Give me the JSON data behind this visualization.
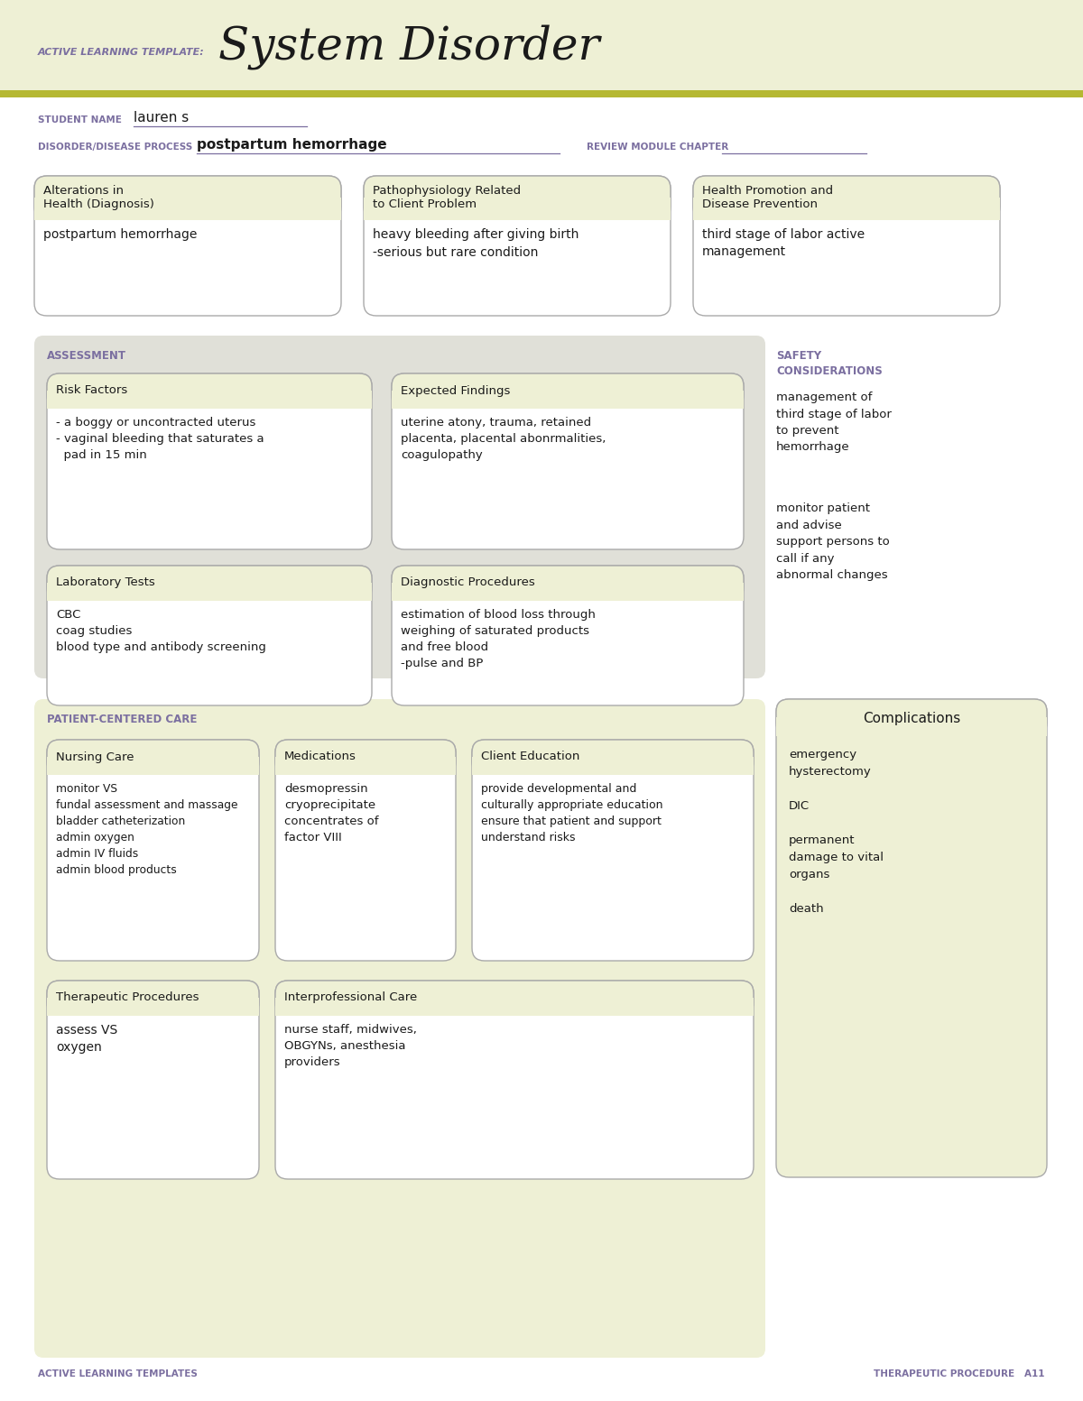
{
  "bg_color": "#eef0d5",
  "white": "#ffffff",
  "light_yellow": "#eef0d5",
  "light_gray": "#e0e0d8",
  "olive_line": "#b5b832",
  "purple": "#7b6fa0",
  "dark_text": "#1a1a1a",
  "title_prefix": "ACTIVE LEARNING TEMPLATE:",
  "title_main": "System Disorder",
  "student_name_label": "STUDENT NAME",
  "student_name_value": "lauren s",
  "disorder_label": "DISORDER/DISEASE PROCESS",
  "disorder_value": "postpartum hemorrhage",
  "review_label": "REVIEW MODULE CHAPTER",
  "box1_title": "Alterations in\nHealth (Diagnosis)",
  "box1_content": "postpartum hemorrhage",
  "box2_title": "Pathophysiology Related\nto Client Problem",
  "box2_content": "heavy bleeding after giving birth\n-serious but rare condition",
  "box3_title": "Health Promotion and\nDisease Prevention",
  "box3_content": "third stage of labor active\nmanagement",
  "assessment_label": "ASSESSMENT",
  "safety_label": "SAFETY\nCONSIDERATIONS",
  "risk_title": "Risk Factors",
  "risk_content": "- a boggy or uncontracted uterus\n- vaginal bleeding that saturates a\n  pad in 15 min",
  "expected_title": "Expected Findings",
  "expected_content": "uterine atony, trauma, retained\nplacenta, placental abonrmalities,\ncoagulopathy",
  "lab_title": "Laboratory Tests",
  "lab_content": "CBC\ncoag studies\nblood type and antibody screening",
  "diag_title": "Diagnostic Procedures",
  "diag_content": "estimation of blood loss through\nweighing of saturated products\nand free blood\n-pulse and BP",
  "safety_content1": "management of\nthird stage of labor\nto prevent\nhemorrhage",
  "safety_content2": "monitor patient\nand advise\nsupport persons to\ncall if any\nabnormal changes",
  "patient_care_label": "PATIENT-CENTERED CARE",
  "complications_title": "Complications",
  "nursing_title": "Nursing Care",
  "nursing_content": "monitor VS\nfundal assessment and massage\nbladder catheterization\nadmin oxygen\nadmin IV fluids\nadmin blood products",
  "meds_title": "Medications",
  "meds_content": "desmopressin\ncryoprecipitate\nconcentrates of\nfactor VIII",
  "client_ed_title": "Client Education",
  "client_ed_content": "provide developmental and\nculturally appropriate education\nensure that patient and support\nunderstand risks",
  "therapeutic_title": "Therapeutic Procedures",
  "therapeutic_content": "assess VS\noxygen",
  "interpro_title": "Interprofessional Care",
  "interpro_content": "nurse staff, midwives,\nOBGYNs, anesthesia\nproviders",
  "complications_content": "emergency\nhysterectomy\n\nDIC\n\npermanent\ndamage to vital\norgans\n\ndeath",
  "footer_left": "ACTIVE LEARNING TEMPLATES",
  "footer_right": "THERAPEUTIC PROCEDURE   A11"
}
